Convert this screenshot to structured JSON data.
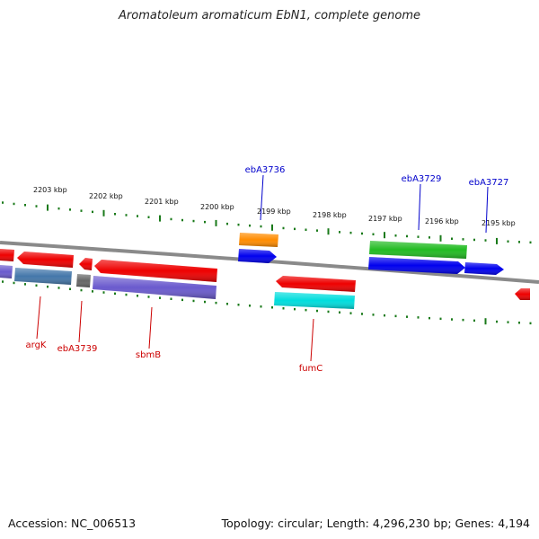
{
  "title": "Aromatoleum aromaticum EbN1, complete genome",
  "footer": {
    "accession": "Accession: NC_006513",
    "summary": "Topology: circular; Length: 4,296,230 bp; Genes: 4,194"
  },
  "scale_labels": [
    "2203 kbp",
    "2202 kbp",
    "2201 kbp",
    "2200 kbp",
    "2199 kbp",
    "2198 kbp",
    "2197 kbp",
    "2196 kbp",
    "2195 kbp"
  ],
  "labels": {
    "top": [
      {
        "name": "ebA3736",
        "color": "#0000cc"
      },
      {
        "name": "ebA3729",
        "color": "#0000cc"
      },
      {
        "name": "ebA3727",
        "color": "#0000cc"
      }
    ],
    "bottom": [
      {
        "name": "argK",
        "color": "#cc0000"
      },
      {
        "name": "ebA3739",
        "color": "#cc0000"
      },
      {
        "name": "sbmB",
        "color": "#cc0000"
      },
      {
        "name": "fumC",
        "color": "#cc0000"
      }
    ]
  },
  "colors": {
    "backbone": "#808080",
    "tick": "#1a7a1a",
    "red": "#ee0000",
    "orange": "#ff8c00",
    "blue": "#0000ee",
    "green": "#22bb22",
    "steelblue": "#4477aa",
    "gray": "#666666",
    "purple": "#6a5acd",
    "cyan": "#00dddd"
  }
}
